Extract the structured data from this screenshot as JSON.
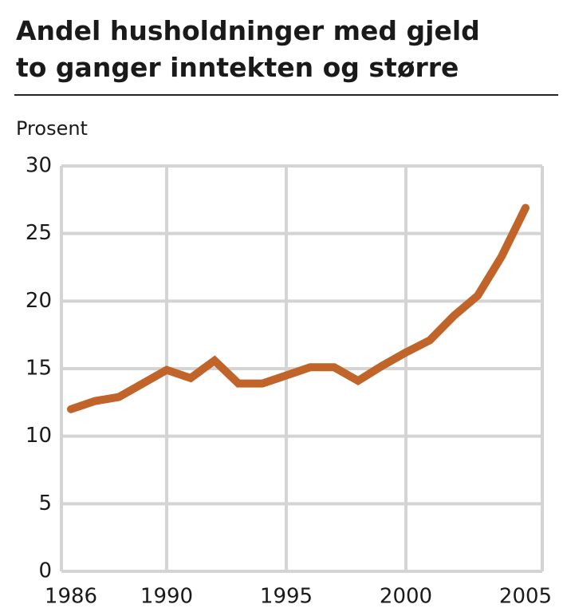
{
  "chart_data": {
    "type": "line",
    "title": [
      "Andel husholdninger med gjeld",
      "to ganger inntekten og større"
    ],
    "y_label": "Prosent",
    "x": [
      1986,
      1987,
      1988,
      1989,
      1990,
      1991,
      1992,
      1993,
      1994,
      1995,
      1996,
      1997,
      1998,
      1999,
      2000,
      2001,
      2002,
      2003,
      2004,
      2005
    ],
    "series": [
      {
        "color": "#c0642a",
        "values": [
          12.0,
          12.6,
          12.9,
          13.9,
          14.9,
          14.3,
          15.6,
          13.9,
          13.9,
          14.5,
          15.1,
          15.1,
          14.1,
          15.2,
          16.2,
          17.1,
          18.9,
          20.4,
          23.3,
          26.9
        ]
      }
    ],
    "xlim": [
      1985.6,
      2005.7
    ],
    "xticks": [
      1986,
      1990,
      1995,
      2000,
      2005
    ],
    "ylim": [
      0,
      30
    ],
    "yticks": [
      0,
      5,
      10,
      15,
      20,
      25,
      30
    ],
    "grid": true
  }
}
